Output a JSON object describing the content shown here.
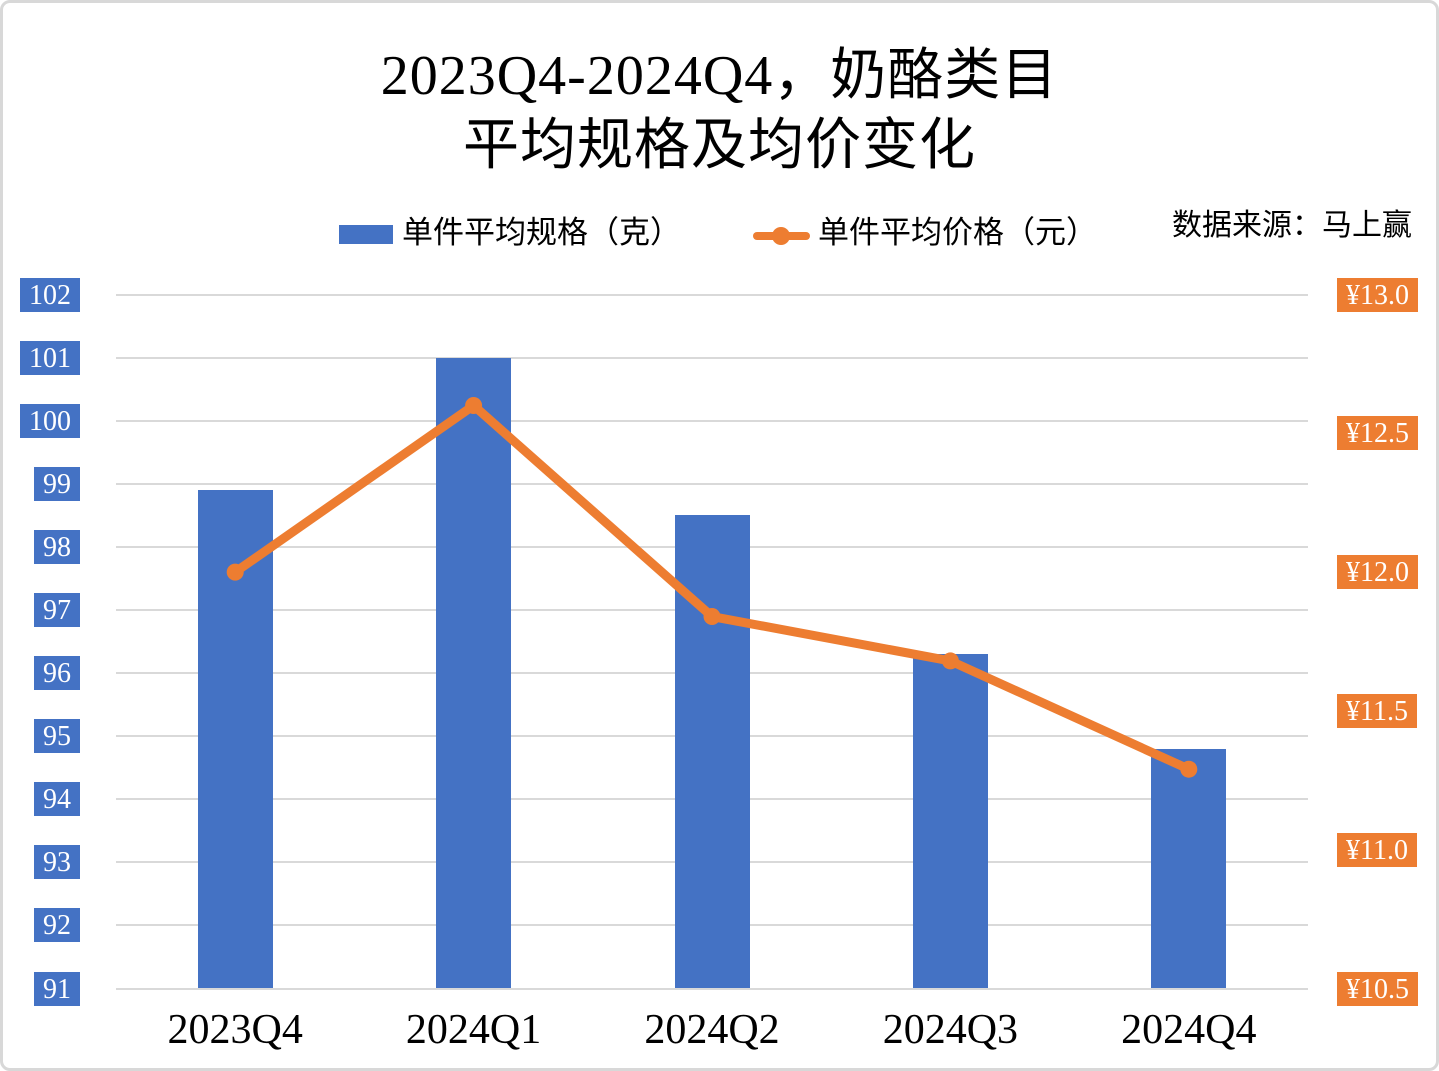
{
  "title": {
    "line1": "2023Q4-2024Q4，奶酪类目",
    "line2": "平均规格及均价变化"
  },
  "source": {
    "label": "数据来源：马上赢"
  },
  "colors": {
    "bar": "#4472C4",
    "line": "#ED7D31",
    "grid": "#D9D9D9",
    "frame_border": "#D8D8D8",
    "text": "#000000",
    "tick_text": "#FFFFFF"
  },
  "chart_data": {
    "type": "combo-bar-line",
    "title": "2023Q4-2024Q4，奶酪类目 平均规格及均价变化",
    "categories": [
      "2023Q4",
      "2024Q1",
      "2024Q2",
      "2024Q3",
      "2024Q4"
    ],
    "series": [
      {
        "name": "单件平均规格（克）",
        "type": "bar",
        "axis": "left",
        "color": "#4472C4",
        "values": [
          98.9,
          101.0,
          98.5,
          96.3,
          94.8
        ]
      },
      {
        "name": "单件平均价格（元）",
        "type": "line",
        "axis": "right",
        "color": "#ED7D31",
        "values": [
          12.0,
          12.6,
          11.84,
          11.68,
          11.29
        ]
      }
    ],
    "axes": {
      "left": {
        "min": 91,
        "max": 102,
        "step": 1,
        "ticks": [
          "102",
          "101",
          "100",
          "99",
          "98",
          "97",
          "96",
          "95",
          "94",
          "93",
          "92",
          "91"
        ],
        "label_bg": "#4472C4",
        "label_color": "#FFFFFF"
      },
      "right": {
        "min": 10.5,
        "max": 13.0,
        "step": 0.5,
        "ticks": [
          "¥13.0",
          "¥12.5",
          "¥12.0",
          "¥11.5",
          "¥11.0",
          "¥10.5"
        ],
        "label_bg": "#ED7D31",
        "label_color": "#FFFFFF"
      }
    },
    "grid": {
      "horizontal": true,
      "color": "#D9D9D9"
    },
    "legend_position": "top"
  }
}
